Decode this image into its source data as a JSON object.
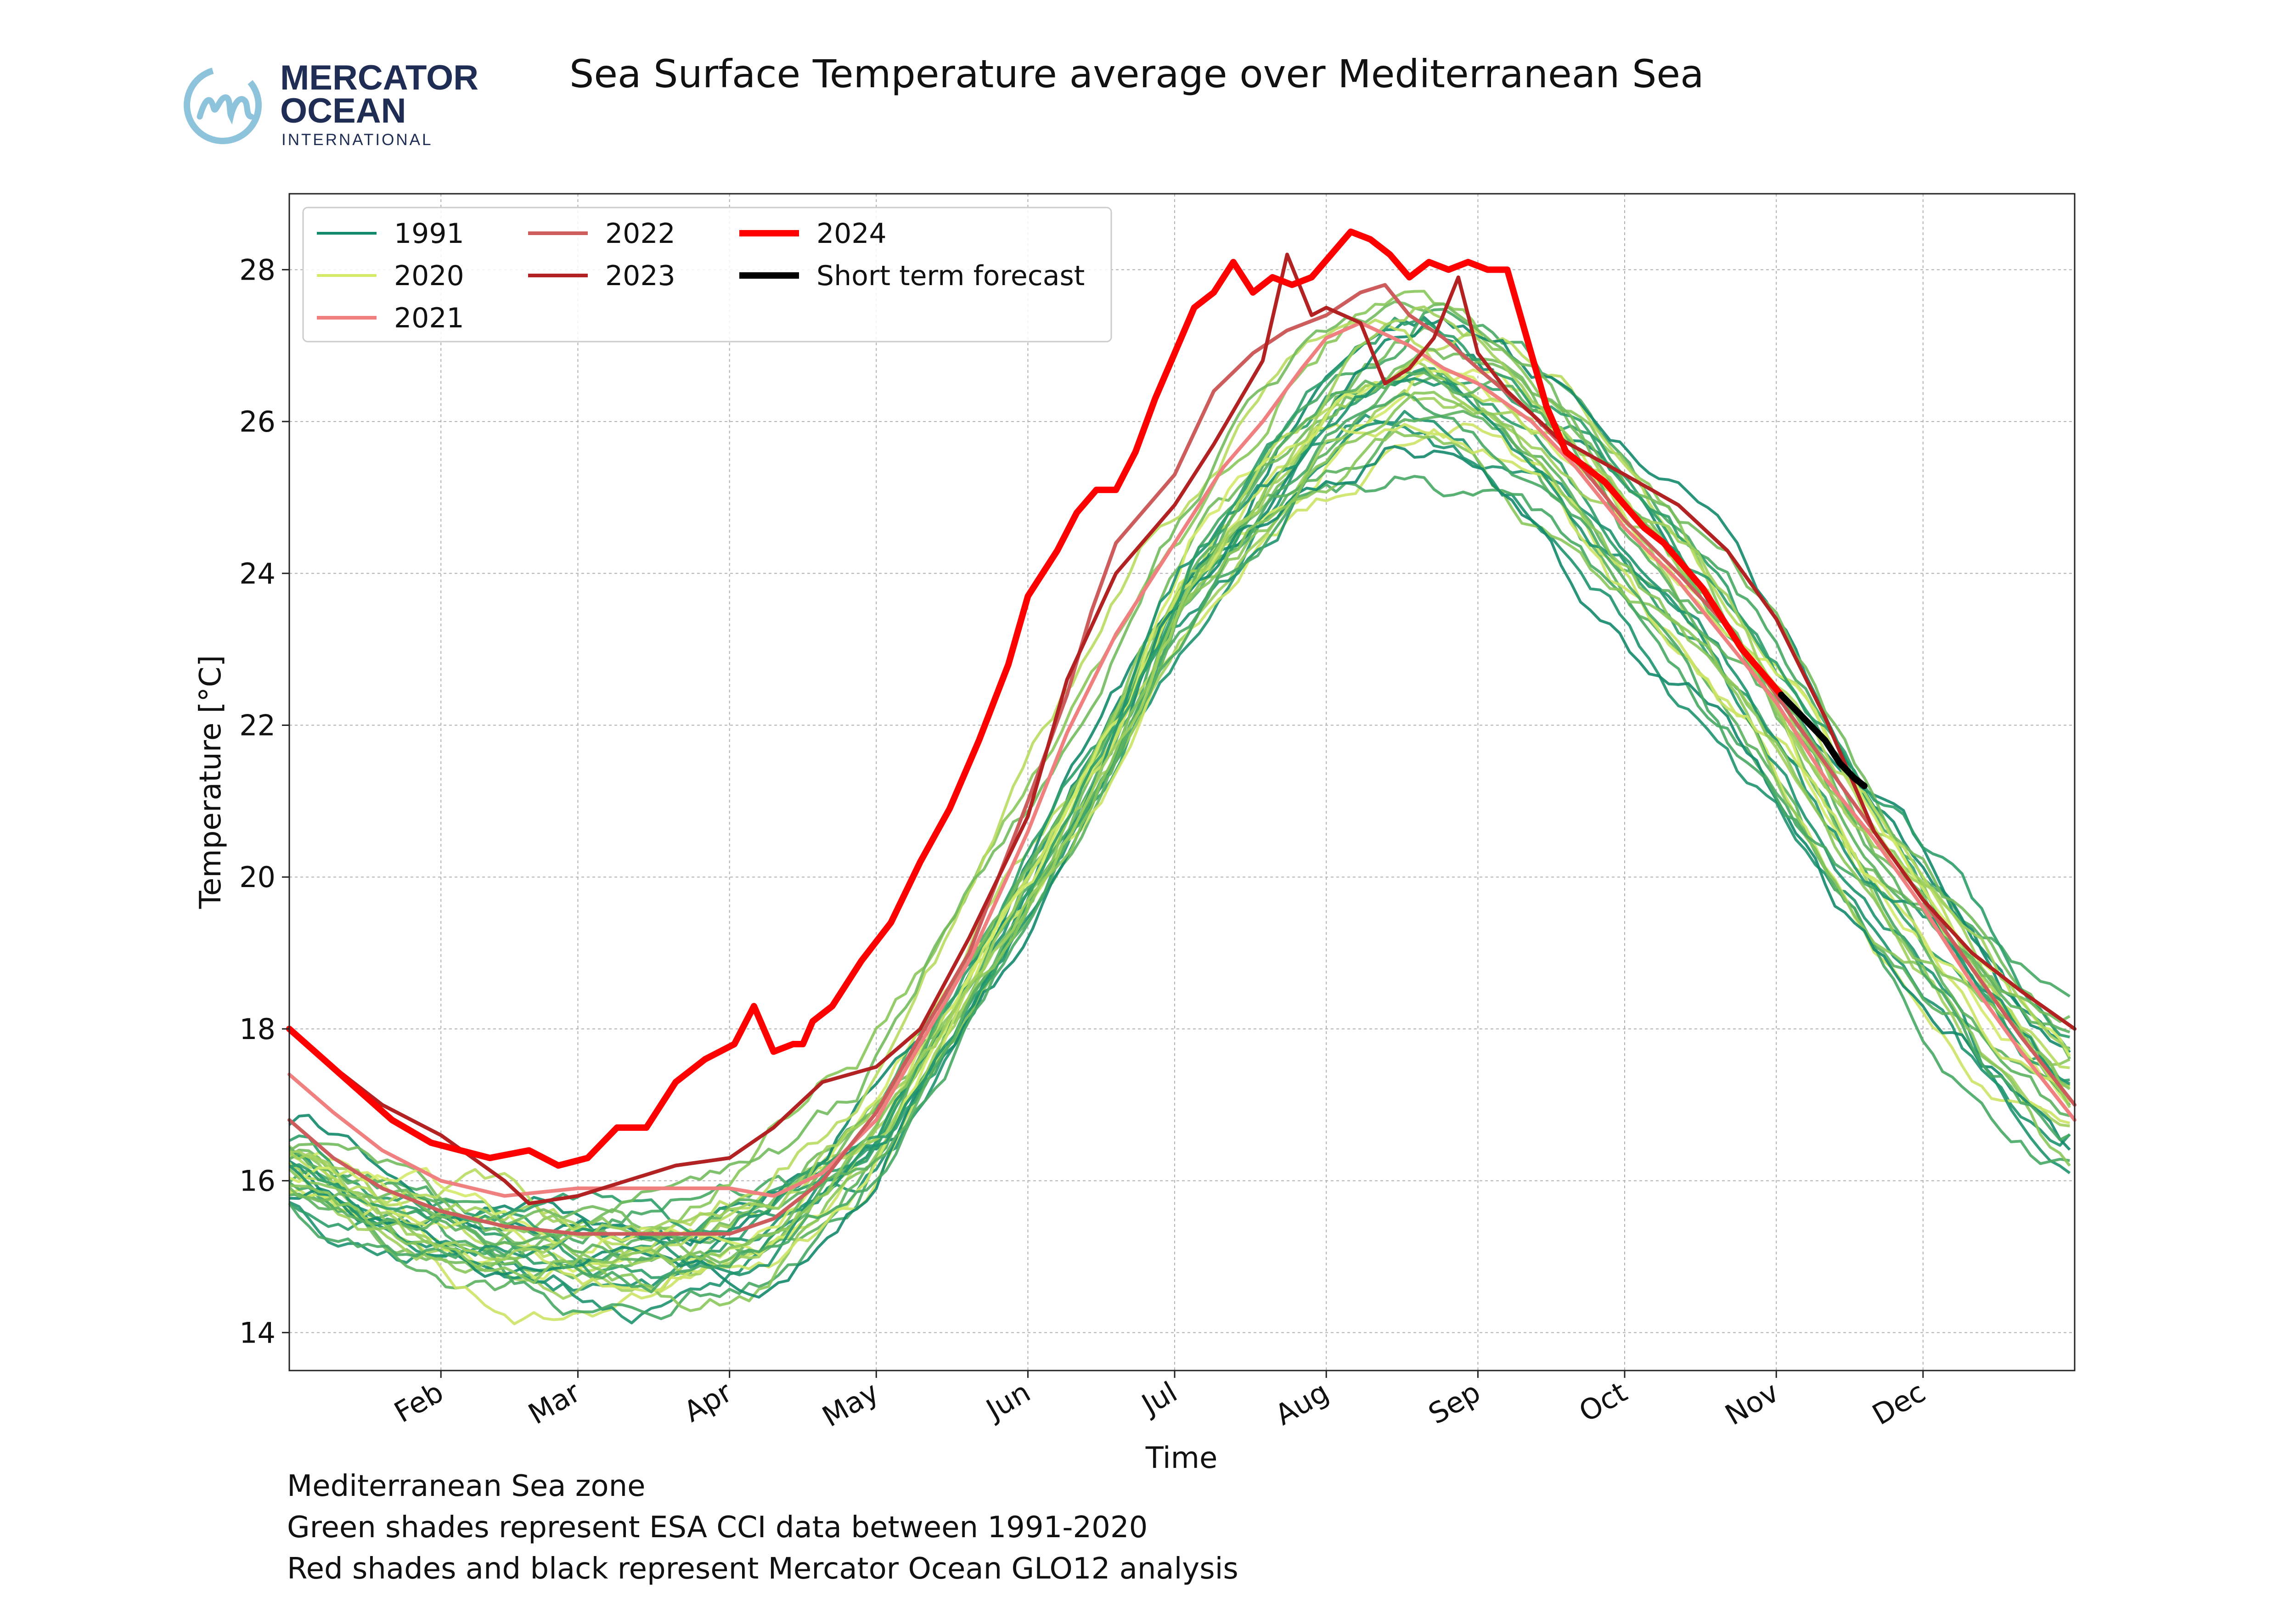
{
  "logo": {
    "line1": "MERCATOR",
    "line2": "OCEAN",
    "line3": "INTERNATIONAL",
    "mark_color": "#8ec3dc",
    "text_color": "#1f2d55"
  },
  "captions": {
    "line1": "Mediterranean Sea zone",
    "line2": "Green shades represent ESA CCI data between 1991-2020",
    "line3": "Red shades and black represent Mercator Ocean GLO12 analysis"
  },
  "chart_data": {
    "type": "line",
    "title": "Sea Surface Temperature average over Mediterranean Sea",
    "xlabel": "Time",
    "ylabel": "Temperature [°C]",
    "xlim": [
      1,
      366
    ],
    "ylim": [
      13.5,
      29
    ],
    "y_ticks": [
      14,
      16,
      18,
      20,
      22,
      24,
      26,
      28
    ],
    "x_ticks": [
      {
        "day": 32,
        "label": "Feb"
      },
      {
        "day": 60,
        "label": "Mar"
      },
      {
        "day": 91,
        "label": "Apr"
      },
      {
        "day": 121,
        "label": "May"
      },
      {
        "day": 152,
        "label": "Jun"
      },
      {
        "day": 182,
        "label": "Jul"
      },
      {
        "day": 213,
        "label": "Aug"
      },
      {
        "day": 244,
        "label": "Sep"
      },
      {
        "day": 274,
        "label": "Oct"
      },
      {
        "day": 305,
        "label": "Nov"
      },
      {
        "day": 335,
        "label": "Dec"
      }
    ],
    "grid": true,
    "legend_position": "top-left",
    "legend": [
      {
        "label": "1991",
        "color": "#138a6b",
        "width": 6
      },
      {
        "label": "2020",
        "color": "#d4eb6a",
        "width": 6
      },
      {
        "label": "2021",
        "color": "#f08080",
        "width": 8
      },
      {
        "label": "2022",
        "color": "#cd5c5c",
        "width": 8
      },
      {
        "label": "2023",
        "color": "#b22222",
        "width": 8
      },
      {
        "label": "2024",
        "color": "#ff0000",
        "width": 14
      },
      {
        "label": "Short term forecast",
        "color": "#000000",
        "width": 14
      }
    ],
    "climatology_colors": [
      "#138a6b",
      "#1e9370",
      "#2e9e6a",
      "#47a865",
      "#5cb160",
      "#73bb5e",
      "#8ac65c",
      "#a1d05e",
      "#b8db62",
      "#cce466",
      "#d4eb6a"
    ],
    "climatology_note": "30 green-shaded years 1991-2020 spread around the mean annual cycle",
    "climatology_mean": {
      "x": [
        1,
        20,
        40,
        60,
        80,
        100,
        121,
        140,
        152,
        170,
        182,
        200,
        213,
        230,
        244,
        260,
        274,
        290,
        305,
        320,
        335,
        350,
        366
      ],
      "y": [
        16.2,
        15.6,
        15.2,
        15.0,
        15.0,
        15.4,
        16.6,
        18.7,
        20.0,
        22.0,
        23.7,
        25.1,
        26.0,
        26.6,
        26.3,
        25.5,
        24.5,
        23.4,
        22.1,
        20.5,
        19.3,
        18.0,
        17.0
      ]
    },
    "series": [
      {
        "name": "2021",
        "color": "#f08080",
        "x": [
          1,
          10,
          20,
          32,
          45,
          60,
          75,
          91,
          100,
          110,
          121,
          130,
          140,
          152,
          160,
          170,
          182,
          192,
          200,
          208,
          213,
          220,
          230,
          237,
          244,
          255,
          264,
          274,
          285,
          295,
          305,
          315,
          325,
          335,
          345,
          355,
          366
        ],
        "y": [
          17.4,
          16.9,
          16.4,
          16.0,
          15.8,
          15.9,
          15.9,
          15.9,
          15.8,
          16.1,
          16.8,
          17.8,
          18.9,
          20.6,
          21.9,
          23.2,
          24.4,
          25.4,
          26.0,
          26.7,
          27.1,
          27.3,
          27.0,
          26.7,
          26.5,
          26.0,
          25.4,
          24.6,
          23.9,
          23.1,
          22.3,
          21.3,
          20.5,
          19.6,
          18.6,
          17.7,
          16.8
        ]
      },
      {
        "name": "2022",
        "color": "#cd5c5c",
        "x": [
          1,
          10,
          20,
          32,
          45,
          60,
          75,
          91,
          100,
          110,
          121,
          130,
          140,
          152,
          160,
          165,
          170,
          182,
          190,
          198,
          205,
          213,
          220,
          225,
          230,
          237,
          244,
          255,
          264,
          274,
          285,
          295,
          305,
          315,
          325,
          335,
          345,
          355,
          366
        ],
        "y": [
          16.8,
          16.3,
          15.9,
          15.6,
          15.4,
          15.3,
          15.3,
          15.3,
          15.5,
          16.0,
          16.9,
          17.9,
          19.0,
          21.0,
          22.4,
          23.5,
          24.4,
          25.3,
          26.4,
          26.9,
          27.2,
          27.4,
          27.7,
          27.8,
          27.4,
          27.1,
          26.7,
          26.1,
          25.5,
          24.7,
          24.0,
          23.3,
          22.4,
          21.5,
          20.6,
          19.7,
          18.8,
          17.9,
          17.0
        ]
      },
      {
        "name": "2023",
        "color": "#b22222",
        "x": [
          1,
          10,
          20,
          32,
          45,
          50,
          60,
          70,
          80,
          91,
          100,
          110,
          121,
          130,
          140,
          152,
          160,
          170,
          182,
          190,
          200,
          205,
          210,
          213,
          220,
          225,
          230,
          235,
          240,
          244,
          250,
          260,
          274,
          285,
          295,
          305,
          315,
          325,
          335,
          345,
          355,
          366
        ],
        "y": [
          18.0,
          17.5,
          17.0,
          16.6,
          16.0,
          15.7,
          15.8,
          16.0,
          16.2,
          16.3,
          16.7,
          17.3,
          17.5,
          18.0,
          19.2,
          20.8,
          22.6,
          24.0,
          24.9,
          25.7,
          26.8,
          28.2,
          27.4,
          27.5,
          27.3,
          26.5,
          26.7,
          27.1,
          27.9,
          26.9,
          26.4,
          25.8,
          25.3,
          24.9,
          24.3,
          23.4,
          22.1,
          20.6,
          19.7,
          19.0,
          18.5,
          18.0
        ]
      },
      {
        "name": "2024",
        "color": "#ff0000",
        "x": [
          1,
          8,
          15,
          22,
          30,
          36,
          42,
          50,
          56,
          62,
          68,
          74,
          80,
          86,
          92,
          96,
          100,
          104,
          106,
          108,
          112,
          118,
          124,
          130,
          136,
          142,
          148,
          152,
          158,
          162,
          166,
          170,
          174,
          178,
          182,
          186,
          190,
          194,
          198,
          202,
          206,
          210,
          214,
          218,
          222,
          226,
          230,
          234,
          238,
          242,
          246,
          250,
          254,
          258,
          262,
          266,
          270,
          274,
          278,
          282,
          286,
          290,
          294,
          298,
          302,
          306
        ],
        "y": [
          18.0,
          17.6,
          17.2,
          16.8,
          16.5,
          16.4,
          16.3,
          16.4,
          16.2,
          16.3,
          16.7,
          16.7,
          17.3,
          17.6,
          17.8,
          18.3,
          17.7,
          17.8,
          17.8,
          18.1,
          18.3,
          18.9,
          19.4,
          20.2,
          20.9,
          21.8,
          22.8,
          23.7,
          24.3,
          24.8,
          25.1,
          25.1,
          25.6,
          26.3,
          26.9,
          27.5,
          27.7,
          28.1,
          27.7,
          27.9,
          27.8,
          27.9,
          28.2,
          28.5,
          28.4,
          28.2,
          27.9,
          28.1,
          28.0,
          28.1,
          28.0,
          28.0,
          27.1,
          26.2,
          25.6,
          25.4,
          25.2,
          24.9,
          24.6,
          24.4,
          24.1,
          23.8,
          23.4,
          23.0,
          22.7,
          22.4
        ]
      },
      {
        "name": "Short term forecast",
        "color": "#000000",
        "x": [
          306,
          309,
          312,
          315,
          318,
          321,
          323
        ],
        "y": [
          22.4,
          22.2,
          22.0,
          21.8,
          21.5,
          21.3,
          21.2
        ]
      }
    ]
  }
}
